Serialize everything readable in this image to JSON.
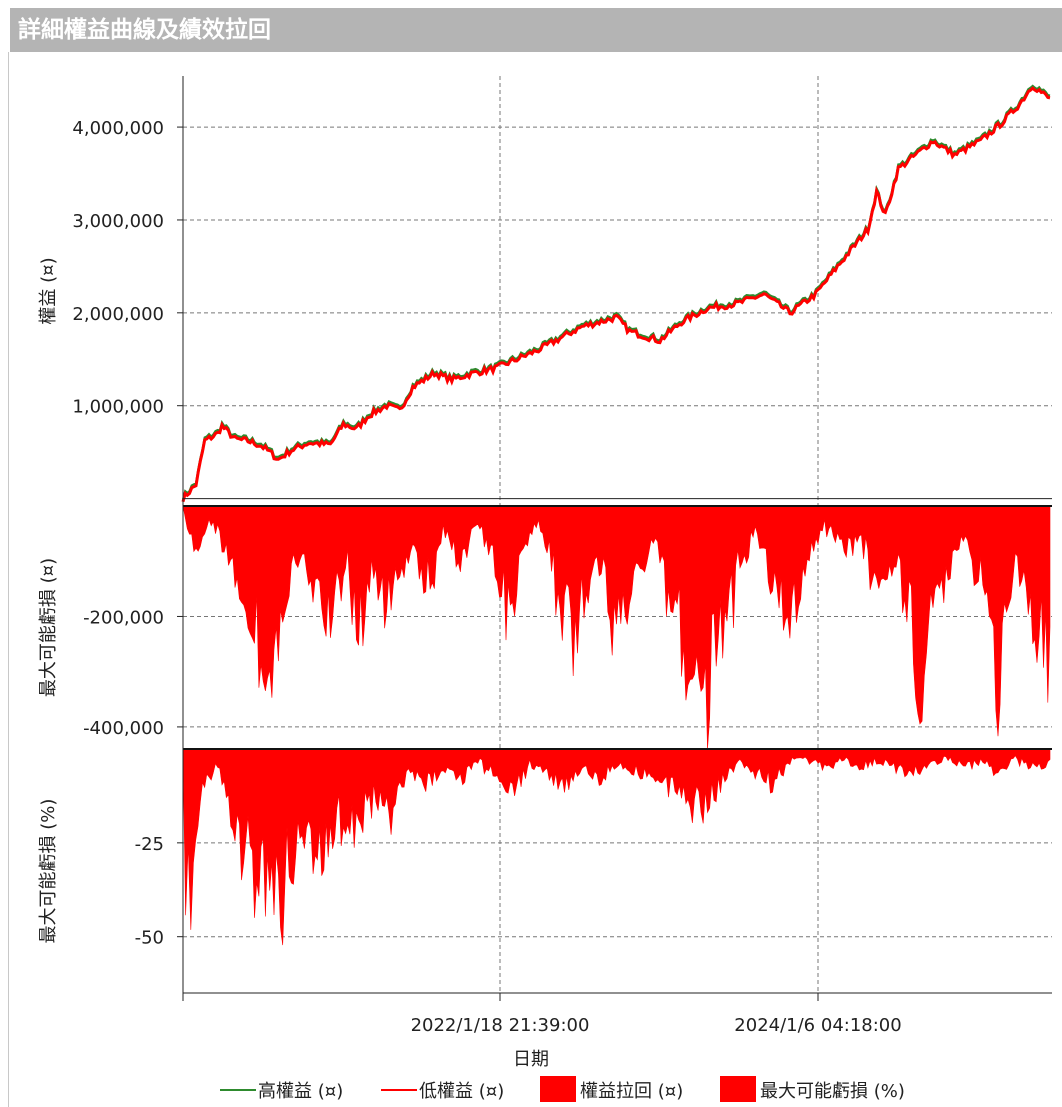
{
  "window": {
    "title": "詳細權益曲線及績效拉回"
  },
  "chart_data": {
    "type": "line",
    "xlabel": "日期",
    "x_ticks": [
      "2022/1/18 21:39:00",
      "2024/1/6 04:18:00"
    ],
    "panels": [
      {
        "name": "equity",
        "ylabel": "權益 (¤)",
        "y_ticks": [
          1000000,
          2000000,
          3000000,
          4000000
        ],
        "y_tick_labels": [
          "1,000,000",
          "2,000,000",
          "3,000,000",
          "4,000,000"
        ],
        "ylim": [
          -80000,
          4550000
        ],
        "series": [
          {
            "name": "高權益 (¤)",
            "color": "#2e8b2e",
            "type": "line"
          },
          {
            "name": "低權益 (¤)",
            "color": "#ff0000",
            "type": "line"
          }
        ],
        "points": [
          [
            0,
            0
          ],
          [
            0.015,
            150000
          ],
          [
            0.025,
            620000
          ],
          [
            0.04,
            700000
          ],
          [
            0.045,
            780000
          ],
          [
            0.06,
            640000
          ],
          [
            0.075,
            620000
          ],
          [
            0.09,
            570000
          ],
          [
            0.1,
            500000
          ],
          [
            0.11,
            420000
          ],
          [
            0.125,
            520000
          ],
          [
            0.145,
            600000
          ],
          [
            0.17,
            580000
          ],
          [
            0.185,
            800000
          ],
          [
            0.2,
            750000
          ],
          [
            0.215,
            900000
          ],
          [
            0.235,
            1000000
          ],
          [
            0.25,
            950000
          ],
          [
            0.265,
            1200000
          ],
          [
            0.29,
            1350000
          ],
          [
            0.31,
            1280000
          ],
          [
            0.335,
            1350000
          ],
          [
            0.36,
            1400000
          ],
          [
            0.385,
            1500000
          ],
          [
            0.41,
            1600000
          ],
          [
            0.43,
            1700000
          ],
          [
            0.46,
            1850000
          ],
          [
            0.5,
            1950000
          ],
          [
            0.515,
            1800000
          ],
          [
            0.55,
            1700000
          ],
          [
            0.575,
            1900000
          ],
          [
            0.605,
            2050000
          ],
          [
            0.64,
            2100000
          ],
          [
            0.67,
            2200000
          ],
          [
            0.7,
            2000000
          ],
          [
            0.73,
            2200000
          ],
          [
            0.755,
            2500000
          ],
          [
            0.79,
            2900000
          ],
          [
            0.8,
            3300000
          ],
          [
            0.81,
            3050000
          ],
          [
            0.825,
            3550000
          ],
          [
            0.845,
            3700000
          ],
          [
            0.865,
            3850000
          ],
          [
            0.89,
            3700000
          ],
          [
            0.92,
            3850000
          ],
          [
            0.945,
            4050000
          ],
          [
            0.965,
            4250000
          ],
          [
            0.98,
            4450000
          ],
          [
            1.0,
            4300000
          ]
        ]
      },
      {
        "name": "drawdown_value",
        "ylabel": "最大可能虧損 (¤)",
        "y_ticks": [
          -200000,
          -400000
        ],
        "y_tick_labels": [
          "-200,000",
          "-400,000"
        ],
        "ylim": [
          -440000,
          0
        ],
        "series": [
          {
            "name": "權益拉回 (¤)",
            "color": "#ff0000",
            "type": "area"
          }
        ],
        "points": [
          [
            0,
            0
          ],
          [
            0.01,
            -80000
          ],
          [
            0.02,
            -120000
          ],
          [
            0.03,
            -20000
          ],
          [
            0.05,
            -100000
          ],
          [
            0.07,
            -200000
          ],
          [
            0.09,
            -300000
          ],
          [
            0.1,
            -400000
          ],
          [
            0.11,
            -300000
          ],
          [
            0.13,
            -120000
          ],
          [
            0.15,
            -180000
          ],
          [
            0.17,
            -260000
          ],
          [
            0.19,
            -120000
          ],
          [
            0.2,
            -300000
          ],
          [
            0.22,
            -150000
          ],
          [
            0.24,
            -220000
          ],
          [
            0.26,
            -100000
          ],
          [
            0.28,
            -180000
          ],
          [
            0.3,
            -60000
          ],
          [
            0.32,
            -120000
          ],
          [
            0.34,
            -40000
          ],
          [
            0.36,
            -140000
          ],
          [
            0.38,
            -260000
          ],
          [
            0.39,
            -100000
          ],
          [
            0.41,
            -30000
          ],
          [
            0.43,
            -160000
          ],
          [
            0.45,
            -280000
          ],
          [
            0.46,
            -200000
          ],
          [
            0.48,
            -120000
          ],
          [
            0.5,
            -300000
          ],
          [
            0.52,
            -160000
          ],
          [
            0.54,
            -80000
          ],
          [
            0.56,
            -180000
          ],
          [
            0.58,
            -300000
          ],
          [
            0.6,
            -410000
          ],
          [
            0.62,
            -300000
          ],
          [
            0.64,
            -140000
          ],
          [
            0.66,
            -60000
          ],
          [
            0.68,
            -180000
          ],
          [
            0.7,
            -260000
          ],
          [
            0.72,
            -120000
          ],
          [
            0.74,
            -40000
          ],
          [
            0.76,
            -100000
          ],
          [
            0.78,
            -60000
          ],
          [
            0.8,
            -160000
          ],
          [
            0.82,
            -120000
          ],
          [
            0.84,
            -250000
          ],
          [
            0.85,
            -430000
          ],
          [
            0.86,
            -200000
          ],
          [
            0.88,
            -150000
          ],
          [
            0.9,
            -80000
          ],
          [
            0.92,
            -160000
          ],
          [
            0.93,
            -260000
          ],
          [
            0.94,
            -410000
          ],
          [
            0.95,
            -220000
          ],
          [
            0.96,
            -100000
          ],
          [
            0.98,
            -260000
          ],
          [
            1.0,
            -320000
          ]
        ]
      },
      {
        "name": "drawdown_percent",
        "ylabel": "最大可能虧損 (%)",
        "y_ticks": [
          -25,
          -50
        ],
        "y_tick_labels": [
          "-25",
          "-50"
        ],
        "ylim": [
          -65,
          0
        ],
        "series": [
          {
            "name": "最大可能虧損 (%)",
            "color": "#ff0000",
            "type": "area"
          }
        ],
        "points": [
          [
            0,
            0
          ],
          [
            0.003,
            -55
          ],
          [
            0.006,
            -40
          ],
          [
            0.009,
            -62
          ],
          [
            0.012,
            -30
          ],
          [
            0.02,
            -15
          ],
          [
            0.04,
            -5
          ],
          [
            0.06,
            -25
          ],
          [
            0.08,
            -35
          ],
          [
            0.1,
            -45
          ],
          [
            0.11,
            -50
          ],
          [
            0.12,
            -38
          ],
          [
            0.14,
            -28
          ],
          [
            0.16,
            -36
          ],
          [
            0.18,
            -20
          ],
          [
            0.2,
            -26
          ],
          [
            0.22,
            -14
          ],
          [
            0.24,
            -20
          ],
          [
            0.26,
            -8
          ],
          [
            0.28,
            -12
          ],
          [
            0.3,
            -6
          ],
          [
            0.32,
            -10
          ],
          [
            0.34,
            -4
          ],
          [
            0.36,
            -8
          ],
          [
            0.38,
            -13
          ],
          [
            0.4,
            -5
          ],
          [
            0.42,
            -8
          ],
          [
            0.44,
            -12
          ],
          [
            0.46,
            -6
          ],
          [
            0.48,
            -10
          ],
          [
            0.5,
            -5
          ],
          [
            0.52,
            -7
          ],
          [
            0.54,
            -9
          ],
          [
            0.56,
            -13
          ],
          [
            0.6,
            -19
          ],
          [
            0.62,
            -12
          ],
          [
            0.64,
            -4
          ],
          [
            0.66,
            -8
          ],
          [
            0.68,
            -10
          ],
          [
            0.7,
            -4
          ],
          [
            0.72,
            -3
          ],
          [
            0.74,
            -6
          ],
          [
            0.76,
            -3
          ],
          [
            0.78,
            -6
          ],
          [
            0.8,
            -4
          ],
          [
            0.84,
            -8
          ],
          [
            0.86,
            -5
          ],
          [
            0.88,
            -3
          ],
          [
            0.9,
            -6
          ],
          [
            0.92,
            -4
          ],
          [
            0.94,
            -8
          ],
          [
            0.96,
            -3
          ],
          [
            0.98,
            -6
          ],
          [
            1.0,
            -5
          ]
        ]
      }
    ],
    "legend_position": "bottom",
    "legend": [
      {
        "label": "高權益 (¤)",
        "style": "line",
        "color": "#2e8b2e"
      },
      {
        "label": "低權益 (¤)",
        "style": "line",
        "color": "#ff0000"
      },
      {
        "label": "權益拉回 (¤)",
        "style": "box",
        "color": "#ff0000"
      },
      {
        "label": "最大可能虧損 (%)",
        "style": "box",
        "color": "#ff0000"
      }
    ],
    "grid": true
  }
}
